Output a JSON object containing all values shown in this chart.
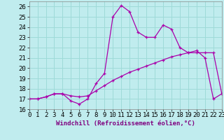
{
  "xlabel": "Windchill (Refroidissement éolien,°C)",
  "xlim": [
    0,
    23
  ],
  "ylim": [
    16,
    26.5
  ],
  "yticks": [
    16,
    17,
    18,
    19,
    20,
    21,
    22,
    23,
    24,
    25,
    26
  ],
  "xticks": [
    0,
    1,
    2,
    3,
    4,
    5,
    6,
    7,
    8,
    9,
    10,
    11,
    12,
    13,
    14,
    15,
    16,
    17,
    18,
    19,
    20,
    21,
    22,
    23
  ],
  "background_color": "#c0ecee",
  "grid_color": "#9edad8",
  "line_color": "#aa00aa",
  "temp_x": [
    0,
    1,
    2,
    3,
    4,
    5,
    6,
    7,
    8,
    9,
    10,
    11,
    12,
    13,
    14,
    15,
    16,
    17,
    18,
    19,
    20,
    21,
    22,
    23
  ],
  "temp_y": [
    17.0,
    17.0,
    17.2,
    17.5,
    17.5,
    16.8,
    16.5,
    17.0,
    18.5,
    19.5,
    25.0,
    26.1,
    25.5,
    23.5,
    23.0,
    23.0,
    24.2,
    23.8,
    22.0,
    21.5,
    21.7,
    21.0,
    17.0,
    17.5
  ],
  "ref_x": [
    0,
    1,
    2,
    3,
    4,
    5,
    6,
    7,
    8,
    9,
    10,
    11,
    12,
    13,
    14,
    15,
    16,
    17,
    18,
    19,
    20,
    21,
    22,
    23
  ],
  "ref_y": [
    17.0,
    17.0,
    17.2,
    17.5,
    17.5,
    17.3,
    17.2,
    17.3,
    17.8,
    18.3,
    18.8,
    19.2,
    19.6,
    19.9,
    20.2,
    20.5,
    20.8,
    21.1,
    21.3,
    21.5,
    21.5,
    21.5,
    21.5,
    17.5
  ],
  "tick_fontsize": 6.5,
  "xlabel_fontsize": 6.5
}
